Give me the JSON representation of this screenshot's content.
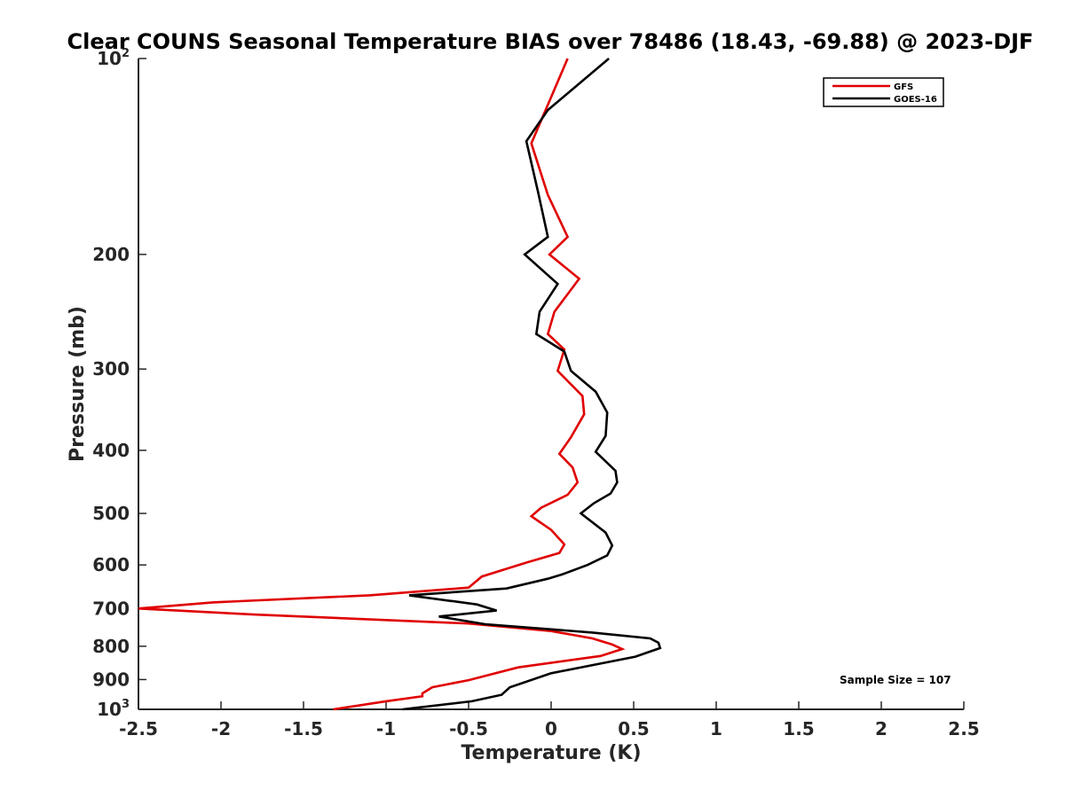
{
  "chart_data": {
    "type": "line",
    "title": "Clear COUNS Seasonal Temperature BIAS over 78486 (18.43, -69.88) @ 2023-DJF",
    "xlabel": "Temperature (K)",
    "ylabel": "Pressure (mb)",
    "xlim": [
      -2.5,
      2.5
    ],
    "ylim": [
      100,
      1000
    ],
    "y_scale": "log",
    "y_reversed": true,
    "x_ticks": [
      "-2.5",
      "-2",
      "-1.5",
      "-1",
      "-0.5",
      "0",
      "0.5",
      "1",
      "1.5",
      "2",
      "2.5"
    ],
    "y_ticks": [
      {
        "value": 100,
        "label": "10",
        "exp": "2"
      },
      {
        "value": 200,
        "label": "200"
      },
      {
        "value": 300,
        "label": "300"
      },
      {
        "value": 400,
        "label": "400"
      },
      {
        "value": 500,
        "label": "500"
      },
      {
        "value": 600,
        "label": "600"
      },
      {
        "value": 700,
        "label": "700"
      },
      {
        "value": 800,
        "label": "800"
      },
      {
        "value": 900,
        "label": "900"
      },
      {
        "value": 1000,
        "label": "10",
        "exp": "3"
      }
    ],
    "grid": false,
    "legend_position": "top-right",
    "annotation": "Sample Size = 107",
    "series": [
      {
        "name": "GFS",
        "color": "#e00000",
        "points": [
          [
            0.1,
            100
          ],
          [
            -0.12,
            135
          ],
          [
            -0.02,
            162
          ],
          [
            0.1,
            188
          ],
          [
            -0.01,
            200
          ],
          [
            0.17,
            218
          ],
          [
            0.02,
            245
          ],
          [
            -0.02,
            265
          ],
          [
            0.08,
            280
          ],
          [
            0.04,
            302
          ],
          [
            0.19,
            330
          ],
          [
            0.2,
            352
          ],
          [
            0.12,
            382
          ],
          [
            0.05,
            405
          ],
          [
            0.13,
            425
          ],
          [
            0.16,
            448
          ],
          [
            0.1,
            468
          ],
          [
            -0.06,
            490
          ],
          [
            -0.12,
            505
          ],
          [
            0.0,
            530
          ],
          [
            0.08,
            558
          ],
          [
            0.05,
            575
          ],
          [
            -0.15,
            595
          ],
          [
            -0.42,
            625
          ],
          [
            -0.5,
            650
          ],
          [
            -1.1,
            668
          ],
          [
            -2.05,
            685
          ],
          [
            -2.5,
            700
          ],
          [
            -1.8,
            715
          ],
          [
            -0.5,
            738
          ],
          [
            0.0,
            758
          ],
          [
            0.25,
            778
          ],
          [
            0.37,
            795
          ],
          [
            0.43,
            808
          ],
          [
            0.3,
            828
          ],
          [
            -0.2,
            862
          ],
          [
            -0.5,
            902
          ],
          [
            -0.72,
            925
          ],
          [
            -0.78,
            945
          ],
          [
            -0.78,
            955
          ],
          [
            -1.0,
            972
          ],
          [
            -1.32,
            1000
          ]
        ]
      },
      {
        "name": "GOES-16",
        "color": "#000000",
        "points": [
          [
            0.35,
            100
          ],
          [
            -0.02,
            120
          ],
          [
            -0.15,
            134
          ],
          [
            -0.08,
            160
          ],
          [
            -0.02,
            188
          ],
          [
            -0.16,
            200
          ],
          [
            0.04,
            222
          ],
          [
            -0.07,
            245
          ],
          [
            -0.09,
            265
          ],
          [
            0.08,
            282
          ],
          [
            0.12,
            302
          ],
          [
            0.27,
            325
          ],
          [
            0.34,
            350
          ],
          [
            0.33,
            380
          ],
          [
            0.27,
            402
          ],
          [
            0.39,
            430
          ],
          [
            0.4,
            448
          ],
          [
            0.36,
            466
          ],
          [
            0.26,
            482
          ],
          [
            0.18,
            500
          ],
          [
            0.33,
            535
          ],
          [
            0.37,
            560
          ],
          [
            0.34,
            580
          ],
          [
            0.22,
            600
          ],
          [
            0.07,
            620
          ],
          [
            -0.02,
            630
          ],
          [
            -0.27,
            652
          ],
          [
            -0.86,
            668
          ],
          [
            -0.45,
            690
          ],
          [
            -0.33,
            705
          ],
          [
            -0.68,
            720
          ],
          [
            -0.4,
            740
          ],
          [
            0.25,
            762
          ],
          [
            0.6,
            778
          ],
          [
            0.65,
            790
          ],
          [
            0.66,
            805
          ],
          [
            0.51,
            830
          ],
          [
            0.0,
            880
          ],
          [
            -0.25,
            925
          ],
          [
            -0.3,
            950
          ],
          [
            -0.48,
            972
          ],
          [
            -0.9,
            1000
          ]
        ]
      }
    ]
  }
}
